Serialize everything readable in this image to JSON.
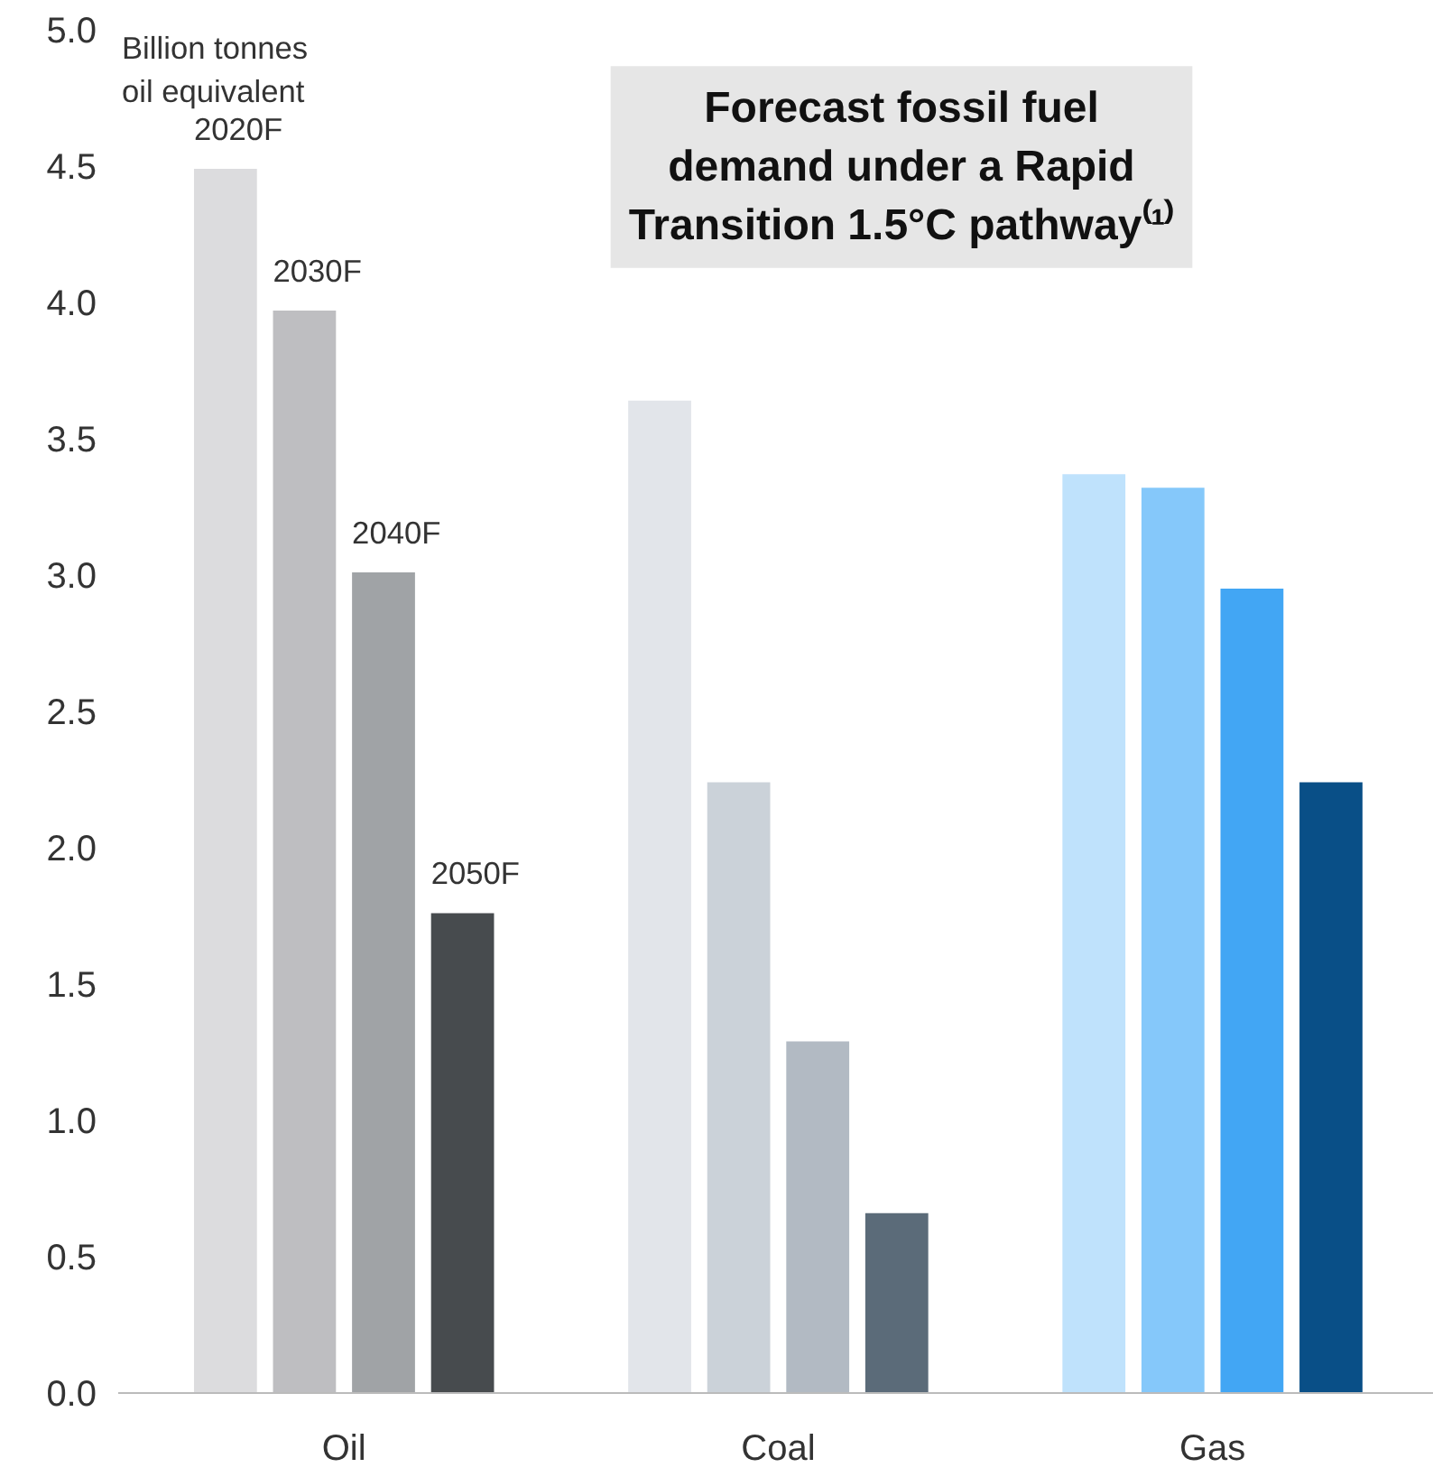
{
  "chart_data": {
    "type": "bar",
    "title": "Forecast fossil fuel\ndemand under a Rapid\nTransition 1.5°C pathway⁽¹⁾",
    "ylabel": "Billion tonnes\noil equivalent",
    "categories": [
      "Oil",
      "Coal",
      "Gas"
    ],
    "series": [
      {
        "name": "2020F",
        "colors": [
          "#dcdcde",
          "#e2e5ea",
          "#bfe2fc"
        ],
        "values": [
          4.49,
          3.64,
          3.37
        ]
      },
      {
        "name": "2030F",
        "colors": [
          "#bebec1",
          "#cbd2d9",
          "#85c8fa"
        ],
        "values": [
          3.97,
          2.24,
          3.32
        ]
      },
      {
        "name": "2040F",
        "colors": [
          "#a0a3a6",
          "#b2bac3",
          "#42a6f4"
        ],
        "values": [
          3.01,
          1.29,
          2.95
        ]
      },
      {
        "name": "2050F",
        "colors": [
          "#474b4e",
          "#5b6b79",
          "#094f87"
        ],
        "values": [
          1.76,
          0.66,
          2.24
        ]
      }
    ],
    "ylim": [
      0,
      5
    ],
    "yticks": [
      {
        "value": 0,
        "label": "0.0"
      },
      0.5,
      {
        "value": 1,
        "label": "1.0"
      },
      1.5,
      {
        "value": 2,
        "label": "2.0"
      },
      2.5,
      {
        "value": 3,
        "label": "3.0"
      },
      3.5,
      {
        "value": 4,
        "label": "4.0"
      },
      4.5,
      {
        "value": 5,
        "label": "5.0"
      }
    ],
    "grid": false
  }
}
